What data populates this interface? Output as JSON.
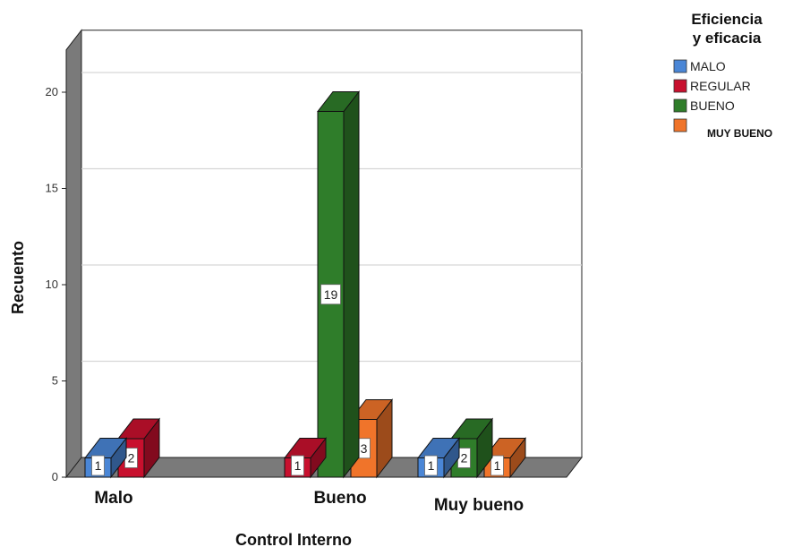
{
  "chart_data": {
    "type": "bar",
    "xlabel": "Control Interno",
    "ylabel": "Recuento",
    "ylim": [
      0,
      20
    ],
    "yticks": [
      0,
      5,
      10,
      15,
      20
    ],
    "grid": true,
    "legend_placement": "top-right",
    "legend_title": [
      "Eficiencia",
      "y eficacia"
    ],
    "categories": [
      "Malo",
      "Bueno",
      "Muy bueno"
    ],
    "series": [
      {
        "name": "MALO",
        "color": "#4a86d6",
        "values": [
          1,
          0,
          1
        ],
        "labels": [
          "1",
          "",
          "1"
        ]
      },
      {
        "name": "REGULAR",
        "color": "#c8102e",
        "values": [
          2,
          1,
          0
        ],
        "labels": [
          "2",
          "1",
          ""
        ]
      },
      {
        "name": "BUENO",
        "color": "#2f7d2a",
        "values": [
          0,
          19,
          2
        ],
        "labels": [
          "",
          "19",
          "2"
        ]
      },
      {
        "name": "MUY BUENO",
        "color": "#f0742a",
        "values": [
          0,
          3,
          1
        ],
        "labels": [
          "",
          "3",
          "1"
        ]
      }
    ]
  }
}
